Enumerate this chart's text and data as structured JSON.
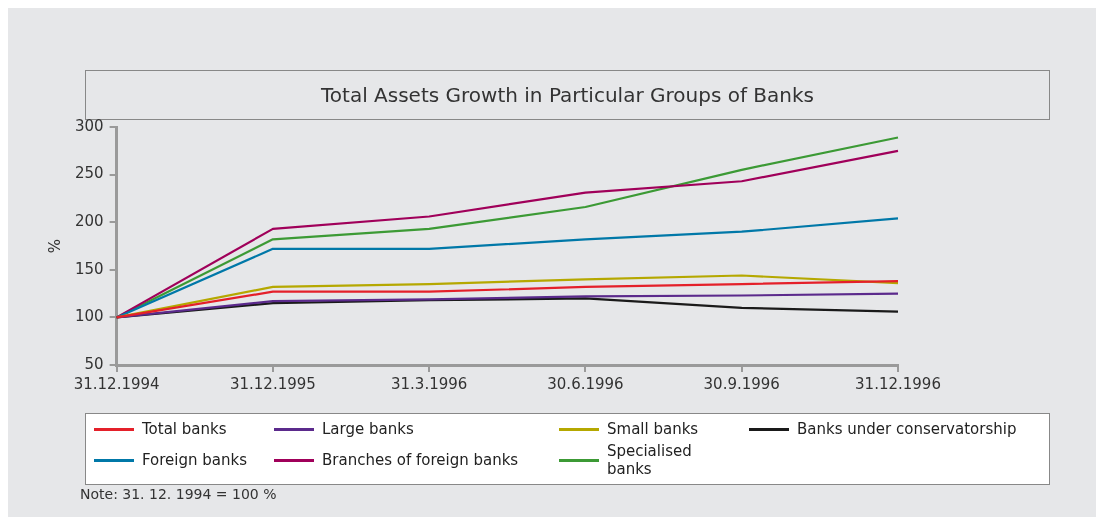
{
  "chart_data": {
    "type": "line",
    "title": "Total Assets Growth in Particular Groups of Banks",
    "ylabel": "%",
    "categories": [
      "31.12.1994",
      "31.12.1995",
      "31.3.1996",
      "30.6.1996",
      "30.9.1996",
      "31.12.1996"
    ],
    "ylim": [
      50,
      300
    ],
    "yticks": [
      50,
      100,
      150,
      200,
      250,
      300
    ],
    "grid": false,
    "legend": "bottom",
    "marker": "none",
    "annotations": [
      "Note: 31. 12. 1994 = 100 %"
    ],
    "series": [
      {
        "name": "Total banks",
        "color": "#e4202a",
        "values": [
          100,
          127,
          127,
          132,
          135,
          138
        ]
      },
      {
        "name": "Large banks",
        "color": "#5b2a8c",
        "values": [
          100,
          117,
          119,
          122,
          123,
          125
        ]
      },
      {
        "name": "Small banks",
        "color": "#b5a800",
        "values": [
          100,
          132,
          135,
          140,
          144,
          136
        ]
      },
      {
        "name": "Banks under conservatorship",
        "color": "#1a1a1a",
        "values": [
          100,
          115,
          118,
          120,
          110,
          106
        ]
      },
      {
        "name": "Foreign banks",
        "color": "#0078a8",
        "values": [
          100,
          172,
          172,
          182,
          190,
          204
        ]
      },
      {
        "name": "Branches of foreign banks",
        "color": "#a0005a",
        "values": [
          100,
          193,
          206,
          231,
          243,
          275
        ]
      },
      {
        "name": "Specialised banks",
        "color": "#3c9a35",
        "values": [
          100,
          182,
          193,
          216,
          255,
          289
        ]
      }
    ]
  }
}
